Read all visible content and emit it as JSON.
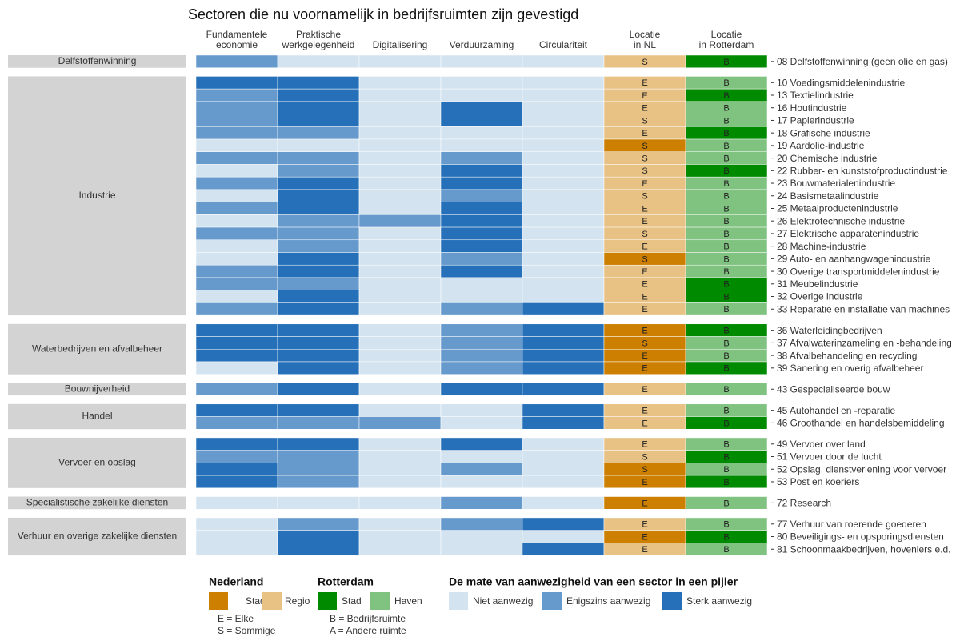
{
  "chart_data": {
    "type": "heatmap",
    "title": "Sectoren die nu voornamelijk in bedrijfsruimten zijn gevestigd",
    "columns": [
      [
        "Fundamentele",
        "economie"
      ],
      [
        "Praktische",
        "werkgelegenheid"
      ],
      [
        "Digitalisering"
      ],
      [
        "Verduurzaming"
      ],
      [
        "Circulariteit"
      ]
    ],
    "location_columns": [
      [
        "Locatie",
        "in NL"
      ],
      [
        "Locatie",
        "in Rotterdam"
      ]
    ],
    "groups": [
      {
        "name": "Delfstoffenwinning",
        "rows": [
          {
            "label": "08 Delfstoffenwinning (geen olie en gas)",
            "levels": [
              1,
              0,
              0,
              0,
              0
            ],
            "nl": "S",
            "nl_type": 1,
            "rdam": "B",
            "rdam_type": 0
          }
        ]
      },
      {
        "name": "Industrie",
        "rows": [
          {
            "label": "10 Voedingsmiddelenindustrie",
            "levels": [
              2,
              2,
              0,
              0,
              0
            ],
            "nl": "E",
            "nl_type": 1,
            "rdam": "B",
            "rdam_type": 1
          },
          {
            "label": "13 Textielindustrie",
            "levels": [
              1,
              2,
              0,
              0,
              0
            ],
            "nl": "E",
            "nl_type": 1,
            "rdam": "B",
            "rdam_type": 0
          },
          {
            "label": "16 Houtindustrie",
            "levels": [
              1,
              2,
              0,
              2,
              0
            ],
            "nl": "E",
            "nl_type": 1,
            "rdam": "B",
            "rdam_type": 1
          },
          {
            "label": "17 Papierindustrie",
            "levels": [
              1,
              2,
              0,
              2,
              0
            ],
            "nl": "S",
            "nl_type": 1,
            "rdam": "B",
            "rdam_type": 1
          },
          {
            "label": "18 Grafische industrie",
            "levels": [
              1,
              1,
              0,
              0,
              0
            ],
            "nl": "E",
            "nl_type": 1,
            "rdam": "B",
            "rdam_type": 0
          },
          {
            "label": "19 Aardolie-industrie",
            "levels": [
              0,
              0,
              0,
              0,
              0
            ],
            "nl": "S",
            "nl_type": 0,
            "rdam": "B",
            "rdam_type": 1
          },
          {
            "label": "20 Chemische industrie",
            "levels": [
              1,
              1,
              0,
              1,
              0
            ],
            "nl": "S",
            "nl_type": 1,
            "rdam": "B",
            "rdam_type": 1
          },
          {
            "label": "22 Rubber- en kunststofproductindustrie",
            "levels": [
              0,
              1,
              0,
              2,
              0
            ],
            "nl": "S",
            "nl_type": 1,
            "rdam": "B",
            "rdam_type": 0
          },
          {
            "label": "23 Bouwmaterialenindustrie",
            "levels": [
              1,
              2,
              0,
              2,
              0
            ],
            "nl": "E",
            "nl_type": 1,
            "rdam": "B",
            "rdam_type": 1
          },
          {
            "label": "24 Basismetaalindustrie",
            "levels": [
              0,
              2,
              0,
              1,
              0
            ],
            "nl": "S",
            "nl_type": 1,
            "rdam": "B",
            "rdam_type": 1
          },
          {
            "label": "25 Metaalproductenindustrie",
            "levels": [
              1,
              2,
              0,
              2,
              0
            ],
            "nl": "E",
            "nl_type": 1,
            "rdam": "B",
            "rdam_type": 1
          },
          {
            "label": "26 Elektrotechnische industrie",
            "levels": [
              0,
              1,
              1,
              2,
              0
            ],
            "nl": "E",
            "nl_type": 1,
            "rdam": "B",
            "rdam_type": 1
          },
          {
            "label": "27 Elektrische apparatenindustrie",
            "levels": [
              1,
              1,
              0,
              2,
              0
            ],
            "nl": "S",
            "nl_type": 1,
            "rdam": "B",
            "rdam_type": 1
          },
          {
            "label": "28 Machine-industrie",
            "levels": [
              0,
              1,
              0,
              2,
              0
            ],
            "nl": "E",
            "nl_type": 1,
            "rdam": "B",
            "rdam_type": 1
          },
          {
            "label": "29 Auto- en aanhangwagenindustrie",
            "levels": [
              0,
              2,
              0,
              1,
              0
            ],
            "nl": "S",
            "nl_type": 0,
            "rdam": "B",
            "rdam_type": 1
          },
          {
            "label": "30 Overige transportmiddelenindustrie",
            "levels": [
              1,
              2,
              0,
              2,
              0
            ],
            "nl": "E",
            "nl_type": 1,
            "rdam": "B",
            "rdam_type": 1
          },
          {
            "label": "31 Meubelindustrie",
            "levels": [
              1,
              1,
              0,
              0,
              0
            ],
            "nl": "E",
            "nl_type": 1,
            "rdam": "B",
            "rdam_type": 0
          },
          {
            "label": "32 Overige industrie",
            "levels": [
              0,
              2,
              0,
              0,
              0
            ],
            "nl": "E",
            "nl_type": 1,
            "rdam": "B",
            "rdam_type": 0
          },
          {
            "label": "33 Reparatie en installatie van machines",
            "levels": [
              1,
              2,
              0,
              1,
              2
            ],
            "nl": "E",
            "nl_type": 1,
            "rdam": "B",
            "rdam_type": 1
          }
        ]
      },
      {
        "name": "Waterbedrijven en afvalbeheer",
        "rows": [
          {
            "label": "36 Waterleidingbedrijven",
            "levels": [
              2,
              2,
              0,
              1,
              2
            ],
            "nl": "E",
            "nl_type": 0,
            "rdam": "B",
            "rdam_type": 0
          },
          {
            "label": "37 Afvalwaterinzameling en -behandeling",
            "levels": [
              2,
              2,
              0,
              1,
              2
            ],
            "nl": "S",
            "nl_type": 0,
            "rdam": "B",
            "rdam_type": 1
          },
          {
            "label": "38 Afvalbehandeling en recycling",
            "levels": [
              2,
              2,
              0,
              1,
              2
            ],
            "nl": "E",
            "nl_type": 0,
            "rdam": "B",
            "rdam_type": 1
          },
          {
            "label": "39 Sanering en overig afvalbeheer",
            "levels": [
              0,
              2,
              0,
              1,
              2
            ],
            "nl": "E",
            "nl_type": 0,
            "rdam": "B",
            "rdam_type": 0
          }
        ]
      },
      {
        "name": "Bouwnijverheid",
        "rows": [
          {
            "label": "43 Gespecialiseerde bouw",
            "levels": [
              1,
              2,
              0,
              2,
              2
            ],
            "nl": "E",
            "nl_type": 1,
            "rdam": "B",
            "rdam_type": 1
          }
        ]
      },
      {
        "name": "Handel",
        "rows": [
          {
            "label": "45 Autohandel en -reparatie",
            "levels": [
              2,
              2,
              0,
              0,
              2
            ],
            "nl": "E",
            "nl_type": 1,
            "rdam": "B",
            "rdam_type": 1
          },
          {
            "label": "46 Groothandel en handelsbemiddeling",
            "levels": [
              1,
              1,
              1,
              0,
              2
            ],
            "nl": "E",
            "nl_type": 1,
            "rdam": "B",
            "rdam_type": 0
          }
        ]
      },
      {
        "name": "Vervoer en opslag",
        "rows": [
          {
            "label": "49 Vervoer over land",
            "levels": [
              2,
              2,
              0,
              2,
              0
            ],
            "nl": "E",
            "nl_type": 1,
            "rdam": "B",
            "rdam_type": 1
          },
          {
            "label": "51 Vervoer door de lucht",
            "levels": [
              1,
              1,
              0,
              0,
              0
            ],
            "nl": "S",
            "nl_type": 1,
            "rdam": "B",
            "rdam_type": 0
          },
          {
            "label": "52 Opslag, dienstverlening voor vervoer",
            "levels": [
              2,
              1,
              0,
              1,
              0
            ],
            "nl": "S",
            "nl_type": 0,
            "rdam": "B",
            "rdam_type": 1
          },
          {
            "label": "53 Post en koeriers",
            "levels": [
              2,
              1,
              0,
              0,
              0
            ],
            "nl": "E",
            "nl_type": 0,
            "rdam": "B",
            "rdam_type": 0
          }
        ]
      },
      {
        "name": "Specialistische zakelijke diensten",
        "rows": [
          {
            "label": "72 Research",
            "levels": [
              0,
              0,
              0,
              1,
              0
            ],
            "nl": "E",
            "nl_type": 0,
            "rdam": "B",
            "rdam_type": 1
          }
        ]
      },
      {
        "name": "Verhuur en overige zakelijke diensten",
        "rows": [
          {
            "label": "77 Verhuur van roerende goederen",
            "levels": [
              0,
              1,
              0,
              1,
              2
            ],
            "nl": "E",
            "nl_type": 1,
            "rdam": "B",
            "rdam_type": 1
          },
          {
            "label": "80 Beveiligings- en opsporingsdiensten",
            "levels": [
              0,
              2,
              0,
              0,
              0
            ],
            "nl": "E",
            "nl_type": 0,
            "rdam": "B",
            "rdam_type": 0
          },
          {
            "label": "81 Schoonmaakbedrijven, hoveniers e.d.",
            "levels": [
              0,
              2,
              0,
              0,
              2
            ],
            "nl": "E",
            "nl_type": 1,
            "rdam": "B",
            "rdam_type": 1
          }
        ]
      }
    ],
    "legend": {
      "nederland": {
        "title": "Nederland",
        "items": [
          {
            "name": "Stad",
            "color": "#cc7f00"
          },
          {
            "name": "Regio",
            "color": "#e8c184"
          }
        ],
        "codes": [
          "E = Elke",
          "S = Sommige"
        ]
      },
      "rotterdam": {
        "title": "Rotterdam",
        "items": [
          {
            "name": "Stad",
            "color": "#008a00"
          },
          {
            "name": "Haven",
            "color": "#80c27f"
          }
        ],
        "codes": [
          "B = Bedrijfsruimte",
          "A = Andere ruimte"
        ]
      },
      "presence": {
        "title": "De mate van aanwezigheid van een sector in een pijler",
        "items": [
          {
            "name": "Niet aanwezig",
            "color": "#d3e3f0"
          },
          {
            "name": "Enigszins aanwezig",
            "color": "#6699cc"
          },
          {
            "name": "Sterk aanwezig",
            "color": "#2570b8"
          }
        ]
      }
    }
  }
}
